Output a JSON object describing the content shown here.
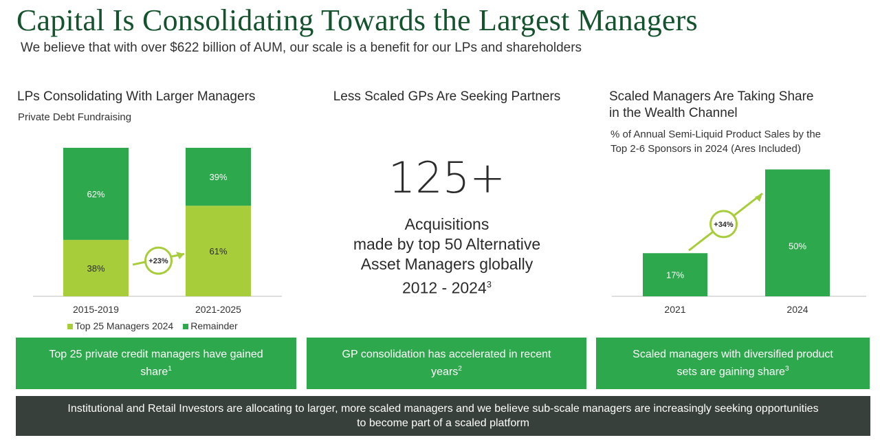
{
  "header": {
    "title": "Capital Is Consolidating Towards the Largest Managers",
    "subtitle": "We believe that with over $622 billion of AUM, our scale is a benefit for our LPs and shareholders"
  },
  "left": {
    "title": "LPs Consolidating With Larger Managers",
    "subtitle": "Private Debt Fundraising",
    "growth_label": "+23%",
    "legend": [
      {
        "label": "Top 25 Managers 2024",
        "color": "#a7cd3a"
      },
      {
        "label": "Remainder",
        "color": "#2ea84c"
      }
    ]
  },
  "middle": {
    "title": "Less Scaled GPs Are Seeking Partners",
    "big_number": "125+",
    "lines": [
      "Acquisitions",
      "made by top 50 Alternative",
      "Asset Managers globally"
    ],
    "years": "2012 - 2024",
    "footnote": "3"
  },
  "right": {
    "title_line1": "Scaled Managers Are Taking Share",
    "title_line2": "in the Wealth Channel",
    "subtitle_line1": "% of Annual Semi-Liquid Product Sales by the",
    "subtitle_line2": "Top 2-6 Sponsors in 2024 (Ares Included)",
    "growth_label": "+34%"
  },
  "cards": [
    {
      "text": "Top 25 private credit managers have gained share",
      "note": "1"
    },
    {
      "text": "GP consolidation has accelerated in recent years",
      "note": "2"
    },
    {
      "text": "Scaled managers with diversified product sets are gaining share",
      "note": "3"
    }
  ],
  "footer": {
    "text": "Institutional and Retail Investors are allocating to larger, more scaled managers and we believe sub-scale managers are increasingly seeking opportunities to become part of a scaled platform"
  },
  "colors": {
    "dark_green": "#2ea84c",
    "lime": "#a7cd3a",
    "title_green": "#14532d",
    "footer": "#38403b"
  },
  "chart_data": [
    {
      "type": "bar",
      "stacked": true,
      "categories": [
        "2015-2019",
        "2021-2025"
      ],
      "series": [
        {
          "name": "Top 25 Managers 2024",
          "values": [
            38,
            61
          ],
          "labels": [
            "38%",
            "61%"
          ]
        },
        {
          "name": "Remainder",
          "values": [
            62,
            39
          ],
          "labels": [
            "62%",
            "39%"
          ]
        }
      ],
      "ylim": [
        0,
        100
      ],
      "annotation": "+23%",
      "legend": "bottom"
    },
    {
      "type": "bar",
      "categories": [
        "2021",
        "2024"
      ],
      "values": [
        17,
        50
      ],
      "labels": [
        "17%",
        "50%"
      ],
      "ylim": [
        0,
        55
      ],
      "annotation": "+34%"
    }
  ]
}
